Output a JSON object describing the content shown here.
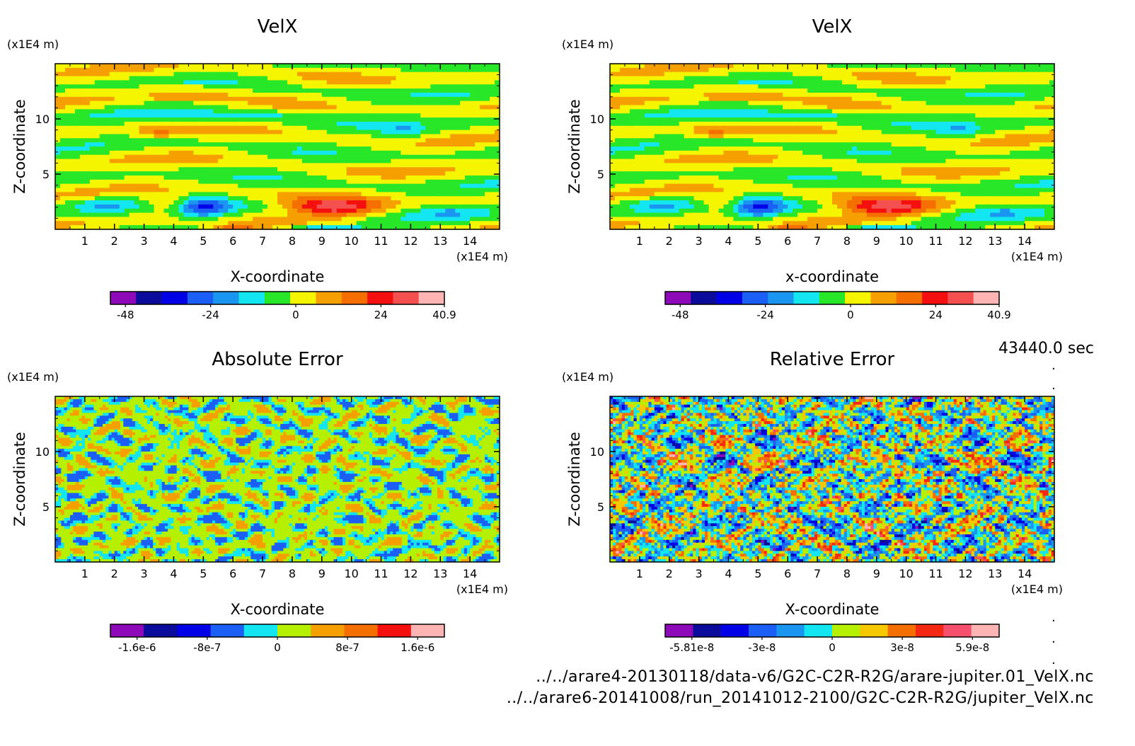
{
  "time_label": "43440.0 sec",
  "files": [
    "../../arare4-20130118/data-v6/G2C-C2R-R2G/arare-jupiter.01_VelX.nc",
    "../../arare6-20141008/run_20141012-2100/G2C-C2R-R2G/jupiter_VelX.nc"
  ],
  "chart_data": [
    {
      "type": "heatmap",
      "title": "VelX",
      "xlabel": "X-coordinate",
      "ylabel": "Z-coordinate",
      "x_unit": "(x1E4 m)",
      "y_unit": "(x1E4 m)",
      "xlim": [
        0,
        15
      ],
      "ylim": [
        0,
        15
      ],
      "x_ticks": [
        "1",
        "2",
        "3",
        "4",
        "5",
        "6",
        "7",
        "8",
        "9",
        "10",
        "11",
        "12",
        "13",
        "14"
      ],
      "y_ticks": [
        "5",
        "10"
      ],
      "colorbar": {
        "labels": [
          "-48",
          "-24",
          "0",
          "24",
          "40.9"
        ],
        "colors": [
          "#8e0ab8",
          "#0b0b9c",
          "#0000e6",
          "#1b5ff5",
          "#1b96f0",
          "#13e6f0",
          "#28e628",
          "#f5f500",
          "#f5a000",
          "#f56e00",
          "#f51010",
          "#f55050",
          "#ffb4b4"
        ]
      }
    },
    {
      "type": "heatmap",
      "title": "VelX",
      "xlabel": "x-coordinate",
      "ylabel": "Z-coordinate",
      "x_unit": "(x1E4 m)",
      "y_unit": "(x1E4 m)",
      "xlim": [
        0,
        15
      ],
      "ylim": [
        0,
        15
      ],
      "x_ticks": [
        "1",
        "2",
        "3",
        "4",
        "5",
        "6",
        "7",
        "8",
        "9",
        "10",
        "11",
        "12",
        "13",
        "14"
      ],
      "y_ticks": [
        "5",
        "10"
      ],
      "colorbar": {
        "labels": [
          "-48",
          "-24",
          "0",
          "24",
          "40.9"
        ],
        "colors": [
          "#8e0ab8",
          "#0b0b9c",
          "#0000e6",
          "#1b5ff5",
          "#1b96f0",
          "#13e6f0",
          "#28e628",
          "#f5f500",
          "#f5a000",
          "#f56e00",
          "#f51010",
          "#f55050",
          "#ffb4b4"
        ]
      }
    },
    {
      "type": "heatmap",
      "title": "Absolute Error",
      "xlabel": "X-coordinate",
      "ylabel": "Z-coordinate",
      "x_unit": "(x1E4 m)",
      "y_unit": "(x1E4 m)",
      "xlim": [
        0,
        15
      ],
      "ylim": [
        0,
        15
      ],
      "x_ticks": [
        "1",
        "2",
        "3",
        "4",
        "5",
        "6",
        "7",
        "8",
        "9",
        "10",
        "11",
        "12",
        "13",
        "14"
      ],
      "y_ticks": [
        "5",
        "10"
      ],
      "colorbar": {
        "labels": [
          "-1.6e-6",
          "-8e-7",
          "0",
          "8e-7",
          "1.6e-6"
        ],
        "colors": [
          "#8e0ab8",
          "#0b0b9c",
          "#0000e6",
          "#1b5ff5",
          "#13e6f0",
          "#b4f000",
          "#f5a000",
          "#f56e00",
          "#f51010",
          "#ffb4b4"
        ]
      }
    },
    {
      "type": "heatmap",
      "title": "Relative Error",
      "xlabel": "X-coordinate",
      "ylabel": "Z-coordinate",
      "x_unit": "(x1E4 m)",
      "y_unit": "(x1E4 m)",
      "xlim": [
        0,
        15
      ],
      "ylim": [
        0,
        15
      ],
      "x_ticks": [
        "1",
        "2",
        "3",
        "4",
        "5",
        "6",
        "7",
        "8",
        "9",
        "10",
        "11",
        "12",
        "13",
        "14"
      ],
      "y_ticks": [
        "5",
        "10"
      ],
      "colorbar": {
        "labels": [
          "-5.81e-8",
          "-3e-8",
          "0",
          "3e-8",
          "5.9e-8"
        ],
        "colors": [
          "#8e0ab8",
          "#0b0b9c",
          "#0000e6",
          "#1b5ff5",
          "#1b96f0",
          "#13e6f0",
          "#b4f000",
          "#f5c800",
          "#f56e00",
          "#f52814",
          "#f5506e",
          "#ffb4b4"
        ]
      }
    }
  ]
}
